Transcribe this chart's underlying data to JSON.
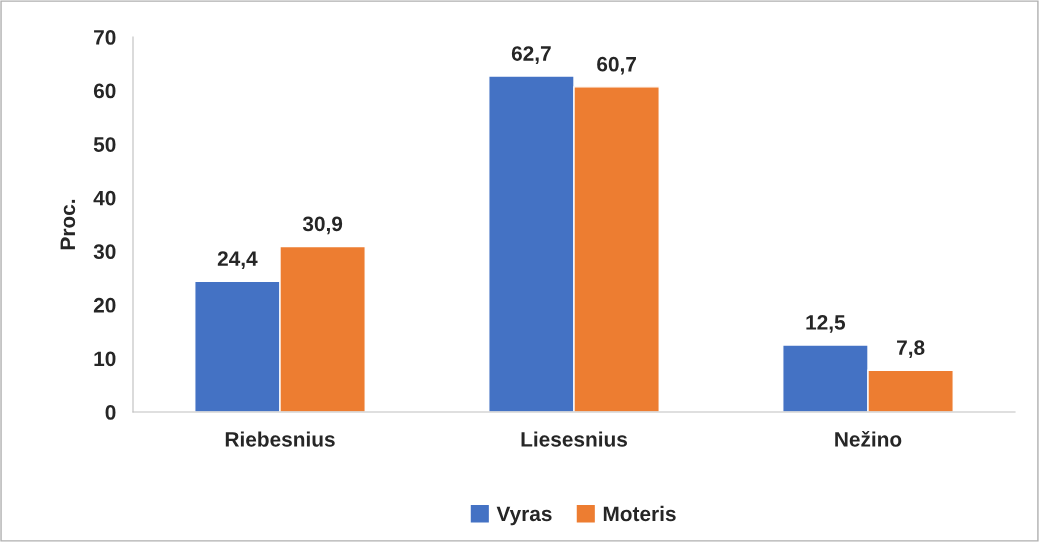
{
  "chart_data": {
    "type": "bar",
    "ylabel": "Proc.",
    "categories": [
      "Riebesnius",
      "Liesesnius",
      "Nežino"
    ],
    "series": [
      {
        "name": "Vyras",
        "color": "#4472c4",
        "values": [
          24.4,
          62.7,
          12.5
        ],
        "value_labels": [
          "24,4",
          "62,7",
          "12,5"
        ]
      },
      {
        "name": "Moteris",
        "color": "#ed7d31",
        "values": [
          30.9,
          60.7,
          7.8
        ],
        "value_labels": [
          "30,9",
          "60,7",
          "7,8"
        ]
      }
    ],
    "ylim": [
      0,
      70
    ],
    "yticks": [
      0,
      10,
      20,
      30,
      40,
      50,
      60,
      70
    ],
    "grid": false,
    "legend": "bottom"
  }
}
